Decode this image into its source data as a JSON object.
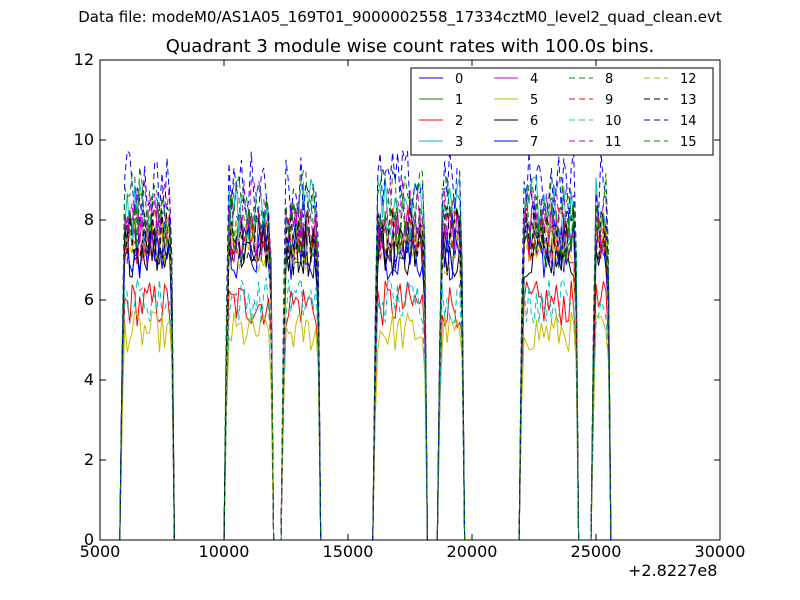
{
  "figure": {
    "suptitle": "Data file: modeM0/AS1A05_169T01_9000002558_17334cztM0_level2_quad_clean.evt",
    "offset_text": "+2.8227e8"
  },
  "chart_data": {
    "type": "line",
    "title": "Quadrant 3 module wise count rates with 100.0s bins.",
    "xlabel": "",
    "ylabel": "",
    "xlim": [
      5000,
      30000
    ],
    "ylim": [
      0,
      12
    ],
    "x_offset": 282270000,
    "xticks": [
      5000,
      10000,
      15000,
      20000,
      25000,
      30000
    ],
    "yticks": [
      0,
      2,
      4,
      6,
      8,
      10,
      12
    ],
    "grid": false,
    "legend": {
      "placement": "top-right",
      "columns": 4
    },
    "segments": [
      [
        5800,
        8000
      ],
      [
        10000,
        12000
      ],
      [
        12300,
        13900
      ],
      [
        16000,
        18200
      ],
      [
        18600,
        19700
      ],
      [
        21900,
        24300
      ],
      [
        24800,
        25600
      ]
    ],
    "series": [
      {
        "name": "0",
        "color": "#0000ff",
        "style": "solid",
        "level": 7.5
      },
      {
        "name": "1",
        "color": "#008000",
        "style": "solid",
        "level": 7.5
      },
      {
        "name": "2",
        "color": "#ff0000",
        "style": "solid",
        "level": 5.9
      },
      {
        "name": "3",
        "color": "#00bfbf",
        "style": "solid",
        "level": 8.3
      },
      {
        "name": "4",
        "color": "#bf00bf",
        "style": "solid",
        "level": 7.7
      },
      {
        "name": "5",
        "color": "#bfbf00",
        "style": "solid",
        "level": 5.2
      },
      {
        "name": "6",
        "color": "#000000",
        "style": "solid",
        "level": 7.3
      },
      {
        "name": "7",
        "color": "#0000ff",
        "style": "solid",
        "level": 7.2
      },
      {
        "name": "8",
        "color": "#008000",
        "style": "dashed",
        "level": 7.9
      },
      {
        "name": "9",
        "color": "#ff0000",
        "style": "dashed",
        "level": 7.6
      },
      {
        "name": "10",
        "color": "#00bfbf",
        "style": "dashed",
        "level": 6.0
      },
      {
        "name": "11",
        "color": "#bf00bf",
        "style": "dashed",
        "level": 8.2
      },
      {
        "name": "12",
        "color": "#bfbf00",
        "style": "dashed",
        "level": 7.4
      },
      {
        "name": "13",
        "color": "#000000",
        "style": "dashed",
        "level": 7.6
      },
      {
        "name": "14",
        "color": "#0000ff",
        "style": "dashed",
        "level": 8.9
      },
      {
        "name": "15",
        "color": "#008000",
        "style": "dashed",
        "level": 8.5
      }
    ]
  }
}
